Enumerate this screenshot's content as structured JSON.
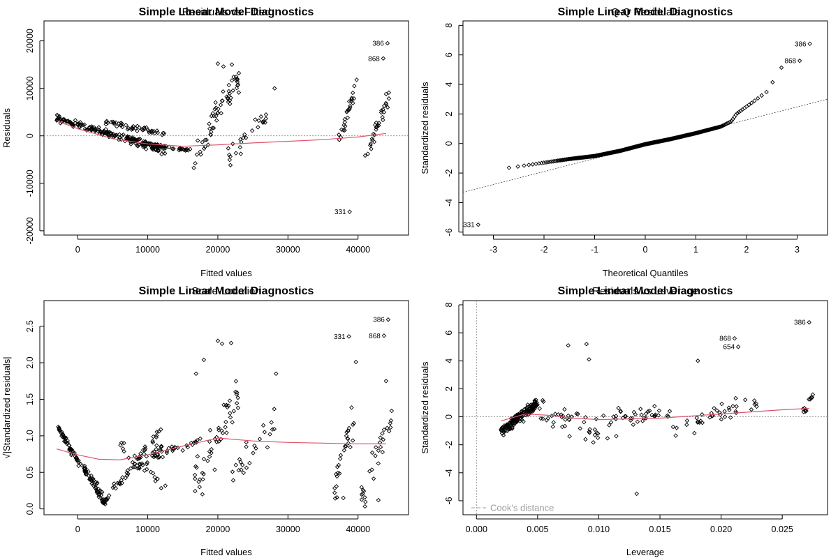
{
  "chart_data": [
    {
      "id": "p1",
      "type": "scatter",
      "title": "Simple Linear Model Diagnostics",
      "subtitle": "Residuals vs Fitted",
      "xlabel": "Fitted values",
      "ylabel": "Residuals",
      "xlim": [
        -4800,
        47200
      ],
      "ylim": [
        -20900,
        24200
      ],
      "xticks": [
        0,
        10000,
        20000,
        30000,
        40000
      ],
      "yticks": [
        -20000,
        -10000,
        0,
        10000,
        20000
      ],
      "yticks_rotated": true,
      "refline": {
        "type": "h",
        "value": 0
      },
      "smooth": [
        [
          -3000,
          3200
        ],
        [
          0,
          1500
        ],
        [
          5000,
          -600
        ],
        [
          10000,
          -1700
        ],
        [
          15000,
          -2200
        ],
        [
          20000,
          -1900
        ],
        [
          25000,
          -1500
        ],
        [
          30000,
          -1150
        ],
        [
          35000,
          -800
        ],
        [
          40000,
          -250
        ],
        [
          44000,
          500
        ]
      ],
      "clusters": [
        {
          "n": 110,
          "x": [
            -3000,
            12500
          ],
          "y": [
            3800,
            -3500
          ],
          "jy": 1000
        },
        {
          "n": 90,
          "x": [
            -2500,
            13000
          ],
          "y": [
            3200,
            -2600
          ],
          "jy": 800
        },
        {
          "n": 50,
          "x": [
            4000,
            12500
          ],
          "y": [
            3000,
            300
          ],
          "jy": 900
        },
        {
          "n": 40,
          "x": [
            9000,
            16500
          ],
          "y": [
            -1500,
            -3200
          ],
          "jy": 500
        },
        {
          "n": 60,
          "x": [
            16500,
            23000
          ],
          "y": [
            -5000,
            12000
          ],
          "jy": 4500
        },
        {
          "n": 25,
          "x": [
            21000,
            27000
          ],
          "y": [
            -5500,
            4000
          ],
          "jy": 3500
        },
        {
          "n": 25,
          "x": [
            36500,
            39500
          ],
          "y": [
            -4500,
            9000
          ],
          "jy": 2500
        },
        {
          "n": 30,
          "x": [
            40800,
            44500
          ],
          "y": [
            -5000,
            8500
          ],
          "jy": 2500
        }
      ],
      "points": [
        {
          "x": 44200,
          "y": 19500,
          "label": "386"
        },
        {
          "x": 43600,
          "y": 16300,
          "label": "868"
        },
        {
          "x": 38800,
          "y": -16000,
          "label": "331"
        },
        {
          "x": 20000,
          "y": 15200
        },
        {
          "x": 22000,
          "y": 15000
        },
        {
          "x": 20800,
          "y": 14600
        },
        {
          "x": 39800,
          "y": 11800
        },
        {
          "x": 28100,
          "y": 10000
        },
        {
          "x": 44000,
          "y": 8800
        }
      ]
    },
    {
      "id": "p2",
      "type": "scatter",
      "title": "Simple Linear Model Diagnostics",
      "subtitle": "Q-Q Residuals",
      "xlabel": "Theoretical Quantiles",
      "ylabel": "Standardized residuals",
      "xlim": [
        -3.6,
        3.6
      ],
      "ylim": [
        -6.2,
        8.3
      ],
      "xticks": [
        -3,
        -2,
        -1,
        0,
        1,
        2,
        3
      ],
      "yticks": [
        -6,
        -4,
        -2,
        0,
        2,
        4,
        6,
        8
      ],
      "yticks_rotated": true,
      "refline": {
        "type": "ab",
        "points": [
          [
            -3.6,
            -3.3
          ],
          [
            3.6,
            3.0
          ]
        ]
      },
      "qq_curve": [
        [
          -3.0,
          -1.8
        ],
        [
          -2.5,
          -1.55
        ],
        [
          -2.0,
          -1.3
        ],
        [
          -1.5,
          -1.05
        ],
        [
          -1.0,
          -0.85
        ],
        [
          -0.5,
          -0.5
        ],
        [
          0.0,
          -0.05
        ],
        [
          0.5,
          0.3
        ],
        [
          1.0,
          0.7
        ],
        [
          1.5,
          1.15
        ],
        [
          1.7,
          1.5
        ],
        [
          1.8,
          2.0
        ],
        [
          2.0,
          2.5
        ],
        [
          2.2,
          3.0
        ],
        [
          2.4,
          3.5
        ],
        [
          2.5,
          4.0
        ],
        [
          2.6,
          5.0
        ],
        [
          2.8,
          5.3
        ],
        [
          2.9,
          5.5
        ]
      ],
      "points": [
        {
          "x": 3.25,
          "y": 6.75,
          "label": "386"
        },
        {
          "x": 3.05,
          "y": 5.6,
          "label": "868"
        },
        {
          "x": -3.3,
          "y": -5.5,
          "label": "331"
        }
      ]
    },
    {
      "id": "p3",
      "type": "scatter",
      "title": "Simple Linear Model Diagnostics",
      "subtitle": "Scale-Location",
      "xlabel": "Fitted values",
      "ylabel": "√|Standardized residuals|",
      "xlim": [
        -4800,
        47200
      ],
      "ylim": [
        -0.08,
        2.85
      ],
      "xticks": [
        0,
        10000,
        20000,
        30000,
        40000
      ],
      "yticks": [
        0.0,
        0.5,
        1.0,
        1.5,
        2.0,
        2.5
      ],
      "ytick_labels": [
        "0.0",
        "0.5",
        "1.0",
        "1.5",
        "2.0",
        "2.5"
      ],
      "yticks_rotated": true,
      "smooth": [
        [
          -3000,
          0.82
        ],
        [
          0,
          0.74
        ],
        [
          3000,
          0.68
        ],
        [
          6000,
          0.67
        ],
        [
          10000,
          0.74
        ],
        [
          15000,
          0.86
        ],
        [
          20000,
          0.97
        ],
        [
          25000,
          0.93
        ],
        [
          30000,
          0.91
        ],
        [
          35000,
          0.9
        ],
        [
          40000,
          0.89
        ],
        [
          44000,
          0.89
        ]
      ],
      "clusters": [
        {
          "n": 80,
          "x": [
            -3000,
            4000
          ],
          "y": [
            1.15,
            0.05
          ],
          "jy": 0.05
        },
        {
          "n": 40,
          "x": [
            -2500,
            4500
          ],
          "y": [
            1.0,
            0.1
          ],
          "jy": 0.08
        },
        {
          "n": 30,
          "x": [
            3800,
            12000
          ],
          "y": [
            0.1,
            1.1
          ],
          "jy": 0.05
        },
        {
          "n": 30,
          "x": [
            5000,
            12000
          ],
          "y": [
            0.3,
            0.85
          ],
          "jy": 0.08
        },
        {
          "n": 25,
          "x": [
            6000,
            13000
          ],
          "y": [
            0.9,
            0.25
          ],
          "jy": 0.15
        },
        {
          "n": 30,
          "x": [
            11000,
            17500
          ],
          "y": [
            0.7,
            0.95
          ],
          "jy": 0.08
        },
        {
          "n": 50,
          "x": [
            16500,
            23000
          ],
          "y": [
            0.3,
            1.6
          ],
          "jy": 0.45
        },
        {
          "n": 25,
          "x": [
            22000,
            28500
          ],
          "y": [
            0.4,
            1.3
          ],
          "jy": 0.35
        },
        {
          "n": 30,
          "x": [
            36500,
            39500
          ],
          "y": [
            0.2,
            1.3
          ],
          "jy": 0.4
        },
        {
          "n": 30,
          "x": [
            40500,
            44800
          ],
          "y": [
            0.2,
            1.3
          ],
          "jy": 0.4
        }
      ],
      "points": [
        {
          "x": 44300,
          "y": 2.59,
          "label": "386"
        },
        {
          "x": 38700,
          "y": 2.36,
          "label": "331"
        },
        {
          "x": 43700,
          "y": 2.37,
          "label": "868"
        },
        {
          "x": 20000,
          "y": 2.3
        },
        {
          "x": 20600,
          "y": 2.26
        },
        {
          "x": 21900,
          "y": 2.27
        },
        {
          "x": 18000,
          "y": 2.04
        },
        {
          "x": 39700,
          "y": 2.01
        },
        {
          "x": 44000,
          "y": 1.75
        },
        {
          "x": 28300,
          "y": 1.85
        },
        {
          "x": 16900,
          "y": 1.85
        },
        {
          "x": 17800,
          "y": 0.2
        },
        {
          "x": 37900,
          "y": 0.15
        },
        {
          "x": 42900,
          "y": 0.12
        }
      ]
    },
    {
      "id": "p4",
      "type": "scatter",
      "title": "Simple Linear Model Diagnostics",
      "subtitle": "Residuals vs Leverage",
      "xlabel": "Leverage",
      "ylabel": "Standardized residuals",
      "xlim": [
        -0.0011,
        0.0287
      ],
      "ylim": [
        -7.0,
        8.3
      ],
      "xticks": [
        0.0,
        0.005,
        0.01,
        0.015,
        0.02,
        0.025
      ],
      "xtick_labels": [
        "0.000",
        "0.005",
        "0.010",
        "0.015",
        "0.020",
        "0.025"
      ],
      "yticks": [
        -6,
        -4,
        -2,
        0,
        2,
        4,
        6,
        8
      ],
      "yticks_rotated": true,
      "refline": {
        "type": "h",
        "value": 0
      },
      "vline": 0.0,
      "smooth": [
        [
          0.002,
          -0.3
        ],
        [
          0.004,
          0.2
        ],
        [
          0.006,
          0.1
        ],
        [
          0.008,
          -0.1
        ],
        [
          0.01,
          -0.2
        ],
        [
          0.015,
          -0.1
        ],
        [
          0.02,
          0.2
        ],
        [
          0.025,
          0.5
        ],
        [
          0.0272,
          0.6
        ]
      ],
      "clusters": [
        {
          "n": 180,
          "x": [
            0.002,
            0.005
          ],
          "y": [
            -1.0,
            1.0
          ],
          "jy": 0.5
        },
        {
          "n": 40,
          "x": [
            0.005,
            0.01
          ],
          "y": [
            0.5,
            -1.0
          ],
          "jy": 1.5
        },
        {
          "n": 40,
          "x": [
            0.01,
            0.016
          ],
          "y": [
            -0.5,
            0.5
          ],
          "jy": 1.2
        },
        {
          "n": 40,
          "x": [
            0.016,
            0.023
          ],
          "y": [
            -1.0,
            1.0
          ],
          "jy": 1.0
        },
        {
          "n": 12,
          "x": [
            0.0265,
            0.0275
          ],
          "y": [
            0.0,
            1.5
          ],
          "jy": 0.3
        }
      ],
      "points": [
        {
          "x": 0.0272,
          "y": 6.75,
          "label": "386"
        },
        {
          "x": 0.0211,
          "y": 5.6,
          "label": "868"
        },
        {
          "x": 0.0214,
          "y": 5.0,
          "label": "654"
        },
        {
          "x": 0.0131,
          "y": -5.5
        },
        {
          "x": 0.009,
          "y": 5.2
        },
        {
          "x": 0.0075,
          "y": 5.1
        },
        {
          "x": 0.0092,
          "y": 4.1
        },
        {
          "x": 0.0181,
          "y": 4.0
        }
      ],
      "legend": {
        "text": "Cook's distance",
        "placement": "bottom-left"
      }
    }
  ]
}
